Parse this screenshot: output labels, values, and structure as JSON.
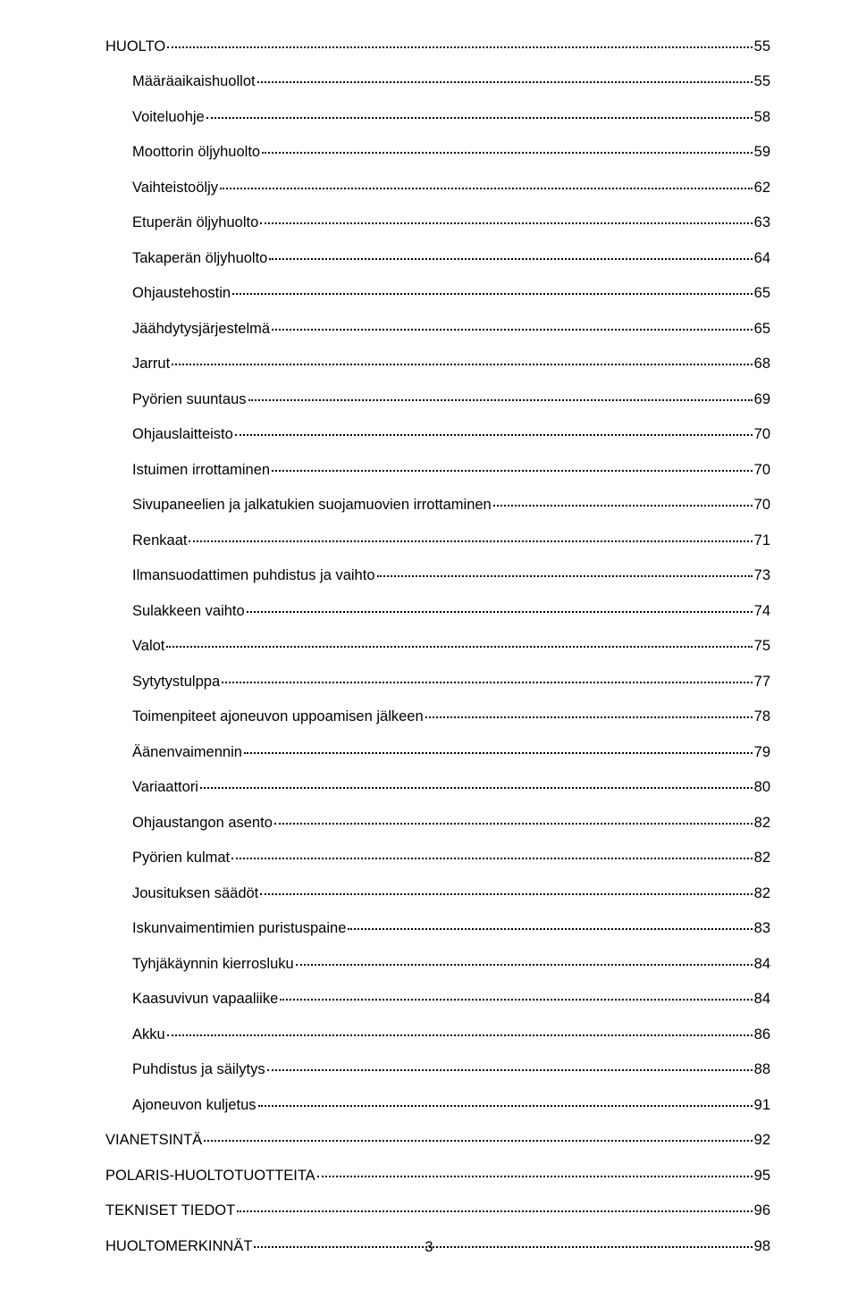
{
  "toc": [
    {
      "label": "HUOLTO",
      "page": "55",
      "level": 0
    },
    {
      "label": "Määräaikaishuollot",
      "page": "55",
      "level": 1
    },
    {
      "label": "Voiteluohje",
      "page": "58",
      "level": 1
    },
    {
      "label": "Moottorin öljyhuolto",
      "page": "59",
      "level": 1
    },
    {
      "label": "Vaihteistoöljy",
      "page": "62",
      "level": 1
    },
    {
      "label": "Etuperän öljyhuolto",
      "page": "63",
      "level": 1
    },
    {
      "label": "Takaperän öljyhuolto",
      "page": "64",
      "level": 1
    },
    {
      "label": "Ohjaustehostin",
      "page": "65",
      "level": 1
    },
    {
      "label": "Jäähdytysjärjestelmä",
      "page": "65",
      "level": 1
    },
    {
      "label": "Jarrut",
      "page": "68",
      "level": 1
    },
    {
      "label": "Pyörien suuntaus",
      "page": "69",
      "level": 1
    },
    {
      "label": "Ohjauslaitteisto",
      "page": "70",
      "level": 1
    },
    {
      "label": "Istuimen irrottaminen",
      "page": "70",
      "level": 1
    },
    {
      "label": "Sivupaneelien ja jalkatukien suojamuovien irrottaminen",
      "page": "70",
      "level": 1
    },
    {
      "label": "Renkaat",
      "page": "71",
      "level": 1
    },
    {
      "label": "Ilmansuodattimen puhdistus ja vaihto",
      "page": "73",
      "level": 1
    },
    {
      "label": "Sulakkeen vaihto",
      "page": "74",
      "level": 1
    },
    {
      "label": "Valot",
      "page": "75",
      "level": 1
    },
    {
      "label": "Sytytystulppa",
      "page": "77",
      "level": 1
    },
    {
      "label": "Toimenpiteet ajoneuvon uppoamisen jälkeen",
      "page": "78",
      "level": 1
    },
    {
      "label": "Äänenvaimennin",
      "page": "79",
      "level": 1
    },
    {
      "label": "Variaattori",
      "page": "80",
      "level": 1
    },
    {
      "label": "Ohjaustangon asento",
      "page": "82",
      "level": 1
    },
    {
      "label": "Pyörien kulmat",
      "page": "82",
      "level": 1
    },
    {
      "label": "Jousituksen säädöt",
      "page": "82",
      "level": 1
    },
    {
      "label": "Iskunvaimentimien puristuspaine",
      "page": "83",
      "level": 1
    },
    {
      "label": "Tyhjäkäynnin kierrosluku",
      "page": "84",
      "level": 1
    },
    {
      "label": "Kaasuvivun vapaaliike",
      "page": "84",
      "level": 1
    },
    {
      "label": "Akku",
      "page": "86",
      "level": 1
    },
    {
      "label": "Puhdistus ja säilytys",
      "page": "88",
      "level": 1
    },
    {
      "label": "Ajoneuvon kuljetus",
      "page": "91",
      "level": 1
    },
    {
      "label": "VIANETSINTÄ",
      "page": "92",
      "level": 0
    },
    {
      "label": "POLARIS-HUOLTOTUOTTEITA",
      "page": "95",
      "level": 0
    },
    {
      "label": "TEKNISET TIEDOT",
      "page": "96",
      "level": 0
    },
    {
      "label": "HUOLTOMERKINNÄT",
      "page": "98",
      "level": 0
    }
  ],
  "pageNumber": "3"
}
